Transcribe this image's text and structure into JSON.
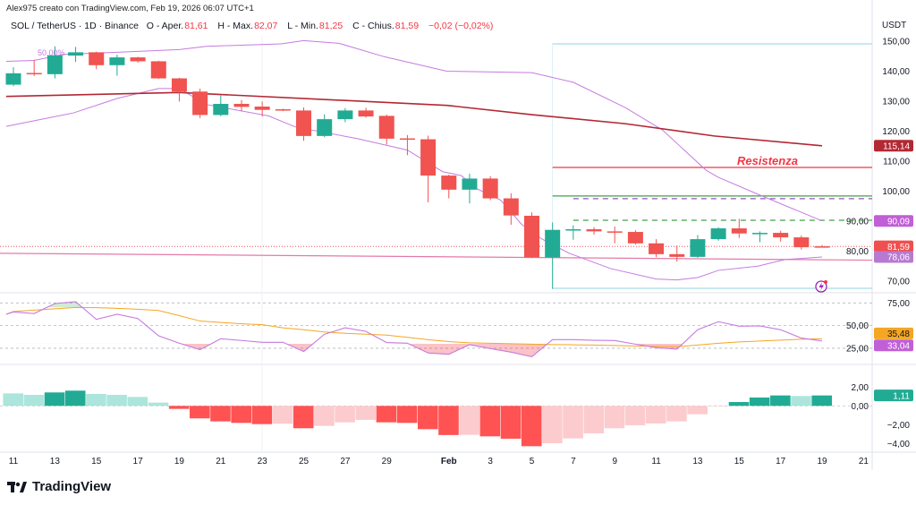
{
  "header": {
    "attribution": "Alex975 creato con TradingView.com, Feb 19, 2026 06:07 UTC+1",
    "symbol": "SOL / TetherUS · 1D · Binance",
    "open_label": "O - Aper.",
    "open": "81,61",
    "high_label": "H - Max.",
    "high": "82,07",
    "low_label": "L - Min.",
    "low": "81,25",
    "close_label": "C - Chius.",
    "close": "81,59",
    "change": "−0,02 (−0,02%)",
    "currency": "USDT"
  },
  "brand": {
    "name": "TradingView"
  },
  "colors": {
    "up": "#22ab94",
    "down": "#f23645",
    "up_light": "#ace5dc",
    "down_light": "#fccbcd",
    "bb": "#c57be0",
    "sma": "#b22833",
    "rsi": "#c57be0",
    "rsi_ma": "#f5a623"
  },
  "x_axis": {
    "labels": [
      "11",
      "13",
      "15",
      "17",
      "19",
      "21",
      "23",
      "25",
      "27",
      "29",
      "Feb",
      "3",
      "5",
      "7",
      "9",
      "11",
      "13",
      "15",
      "17",
      "19",
      "21"
    ],
    "label_day_index": [
      0,
      2,
      4,
      6,
      8,
      10,
      12,
      14,
      16,
      18,
      21,
      23,
      25,
      27,
      29,
      31,
      33,
      35,
      37,
      39,
      41
    ]
  },
  "price_axis": {
    "ticks": [
      150,
      140,
      130,
      120,
      110,
      100,
      90,
      80,
      70
    ],
    "labels": [
      "150,00",
      "140,00",
      "130,00",
      "120,00",
      "110,00",
      "100,00",
      "90,00",
      "80,00",
      "70,00"
    ]
  },
  "rsi_axis": {
    "ticks": [
      75,
      50,
      25
    ],
    "labels": [
      "75,00",
      "50,00",
      "25,00"
    ]
  },
  "macd_axis": {
    "ticks": [
      2,
      0,
      -2,
      -4
    ],
    "labels": [
      "2,00",
      "0,00",
      "−2,00",
      "−4,00"
    ]
  },
  "badges": [
    {
      "text": "115,14",
      "value": 115.14,
      "pane": "price",
      "color": "#b22833"
    },
    {
      "text": "90,09",
      "value": 90.09,
      "pane": "price",
      "color": "#c05fd6"
    },
    {
      "text": "81,59",
      "value": 81.59,
      "pane": "price",
      "color": "#f04f4f"
    },
    {
      "text": "78,06",
      "value": 78.06,
      "pane": "price",
      "color": "#b77ad0"
    },
    {
      "text": "35,48",
      "value": 35.48,
      "pane": "rsi",
      "color": "#f5a623"
    },
    {
      "text": "33,04",
      "value": 33.04,
      "pane": "rsi",
      "color": "#c05fd6"
    },
    {
      "text": "1,11",
      "value": 1.11,
      "pane": "macd",
      "color": "#22ab94"
    }
  ],
  "annotations": {
    "resistance_label": "Resistenza",
    "fib_label": "50,00%"
  },
  "drawings": {
    "resistance": 107.9,
    "support_green": 98.4,
    "dashed_purple": 97.5,
    "dashed_green": 90.3,
    "range_top": 149.1,
    "range_bottom": 67.6,
    "current_price": 81.59,
    "trendline": [
      79.3,
      77.0
    ]
  },
  "chart_data": {
    "type": "candlestick",
    "candles_ohlc": [
      [
        135.5,
        141.3,
        135.0,
        139.3
      ],
      [
        139.4,
        143.8,
        138.4,
        139.0
      ],
      [
        139.0,
        148.3,
        137.6,
        145.3
      ],
      [
        145.2,
        148.1,
        143.1,
        146.3
      ],
      [
        146.3,
        146.5,
        140.7,
        142.0
      ],
      [
        142.0,
        145.5,
        138.5,
        144.6
      ],
      [
        144.6,
        144.8,
        142.8,
        143.3
      ],
      [
        143.3,
        143.5,
        137.4,
        137.6
      ],
      [
        137.6,
        137.8,
        129.9,
        133.2
      ],
      [
        133.2,
        134.2,
        124.4,
        125.4
      ],
      [
        125.4,
        131.9,
        125.0,
        129.1
      ],
      [
        129.1,
        130.4,
        126.6,
        128.1
      ],
      [
        128.2,
        129.9,
        124.9,
        127.1
      ],
      [
        127.3,
        127.5,
        126.7,
        126.9
      ],
      [
        126.9,
        127.9,
        116.8,
        118.4
      ],
      [
        118.4,
        125.6,
        118.0,
        124.0
      ],
      [
        124.0,
        127.7,
        123.0,
        126.9
      ],
      [
        126.9,
        127.8,
        124.5,
        124.9
      ],
      [
        125.1,
        125.5,
        115.5,
        117.5
      ],
      [
        117.6,
        118.7,
        112.0,
        117.4
      ],
      [
        117.3,
        118.5,
        96.3,
        105.2
      ],
      [
        105.2,
        105.5,
        97.6,
        100.5
      ],
      [
        100.5,
        105.8,
        95.9,
        104.2
      ],
      [
        104.2,
        105.0,
        97.0,
        97.6
      ],
      [
        97.6,
        99.3,
        88.8,
        91.9
      ],
      [
        91.8,
        92.9,
        77.7,
        77.9
      ],
      [
        77.9,
        89.6,
        67.4,
        87.1
      ],
      [
        87.2,
        88.6,
        83.8,
        87.3
      ],
      [
        87.3,
        88.0,
        85.5,
        86.6
      ],
      [
        86.6,
        88.2,
        82.6,
        86.5
      ],
      [
        86.4,
        87.0,
        82.2,
        82.6
      ],
      [
        82.6,
        84.0,
        78.0,
        79.0
      ],
      [
        79.0,
        81.9,
        76.5,
        78.1
      ],
      [
        78.1,
        85.4,
        77.8,
        84.0
      ],
      [
        84.0,
        88.0,
        83.5,
        87.6
      ],
      [
        87.6,
        90.8,
        84.4,
        85.9
      ],
      [
        86.0,
        86.6,
        83.0,
        86.1
      ],
      [
        86.1,
        86.8,
        83.2,
        84.6
      ],
      [
        84.6,
        85.2,
        80.5,
        81.3
      ],
      [
        81.61,
        82.07,
        81.25,
        81.59
      ]
    ],
    "bb_upper": [
      [
        -0.35,
        143.3
      ],
      [
        1,
        143.6
      ],
      [
        2.4,
        145.6
      ],
      [
        5,
        146.3
      ],
      [
        8,
        147.2
      ],
      [
        9.3,
        148.3
      ],
      [
        12.9,
        149.1
      ],
      [
        14,
        150.2
      ],
      [
        15.7,
        149.3
      ],
      [
        17.9,
        144.8
      ],
      [
        20.9,
        140
      ],
      [
        25,
        139.5
      ],
      [
        27,
        136.3
      ],
      [
        29.5,
        127.9
      ],
      [
        31.3,
        120.4
      ],
      [
        33.4,
        107
      ],
      [
        34,
        104.6
      ],
      [
        36,
        98.7
      ],
      [
        39,
        90.09
      ]
    ],
    "bb_lower": [
      [
        -0.35,
        121.6
      ],
      [
        2.9,
        126.1
      ],
      [
        5,
        130.9
      ],
      [
        7,
        134.2
      ],
      [
        8,
        134.2
      ],
      [
        9.3,
        128.9
      ],
      [
        12.3,
        125.1
      ],
      [
        13.6,
        121.4
      ],
      [
        16.6,
        117.5
      ],
      [
        19,
        113.7
      ],
      [
        20.7,
        106.5
      ],
      [
        21.6,
        105.2
      ],
      [
        22.3,
        101
      ],
      [
        23.5,
        97
      ],
      [
        24.5,
        89
      ],
      [
        25.5,
        84
      ],
      [
        26.8,
        79.3
      ],
      [
        28.8,
        74.2
      ],
      [
        31,
        70.7
      ],
      [
        32,
        70.4
      ],
      [
        33,
        71.2
      ],
      [
        34,
        73.6
      ],
      [
        35.9,
        75
      ],
      [
        37.2,
        77.2
      ],
      [
        39,
        78.06
      ]
    ],
    "sma": [
      [
        -0.35,
        131.6
      ],
      [
        8,
        132.9
      ],
      [
        20.9,
        128.6
      ],
      [
        25,
        125.5
      ],
      [
        29.5,
        122.5
      ],
      [
        33.8,
        118.4
      ],
      [
        39,
        115.14
      ]
    ],
    "rsi": [
      65,
      63.3,
      74.3,
      76.3,
      56.9,
      62.5,
      57.8,
      38.8,
      30.6,
      23.4,
      35.5,
      33.6,
      31.6,
      31.6,
      21.4,
      40.4,
      47.6,
      43.6,
      31.3,
      30.6,
      19.8,
      18.4,
      28.9,
      24.6,
      20.7,
      15.7,
      34.5,
      34.5,
      33.8,
      33.5,
      29.5,
      25.6,
      24,
      45.4,
      54.3,
      49.3,
      49.7,
      45.4,
      36.2,
      33.04
    ],
    "rsi_ma": [
      65.5,
      67,
      68.5,
      70,
      69.8,
      69,
      68,
      66.7,
      61,
      55,
      53.5,
      52,
      51,
      47.5,
      45.4,
      43,
      41.5,
      40.5,
      39.5,
      37,
      34.5,
      32.3,
      31,
      30.5,
      30,
      29.5,
      29,
      28.8,
      28.5,
      28,
      27.5,
      27,
      26.8,
      28.5,
      30.5,
      32,
      33,
      34,
      35,
      35.48
    ],
    "macd_hist": [
      1.33,
      1.17,
      1.43,
      1.62,
      1.27,
      1.17,
      0.95,
      0.35,
      -0.32,
      -1.33,
      -1.65,
      -1.81,
      -1.94,
      -1.9,
      -2.38,
      -2.13,
      -1.75,
      -1.49,
      -1.75,
      -1.81,
      -2.48,
      -3.1,
      -3.08,
      -3.24,
      -3.49,
      -4.29,
      -3.97,
      -3.46,
      -2.92,
      -2.38,
      -2.06,
      -1.87,
      -1.65,
      -0.89,
      -0.05,
      0.41,
      0.89,
      1.11,
      1.05,
      1.11
    ],
    "price_range": [
      70,
      150
    ],
    "rsi_range": [
      25,
      75
    ],
    "macd_range": [
      -4,
      2
    ]
  }
}
